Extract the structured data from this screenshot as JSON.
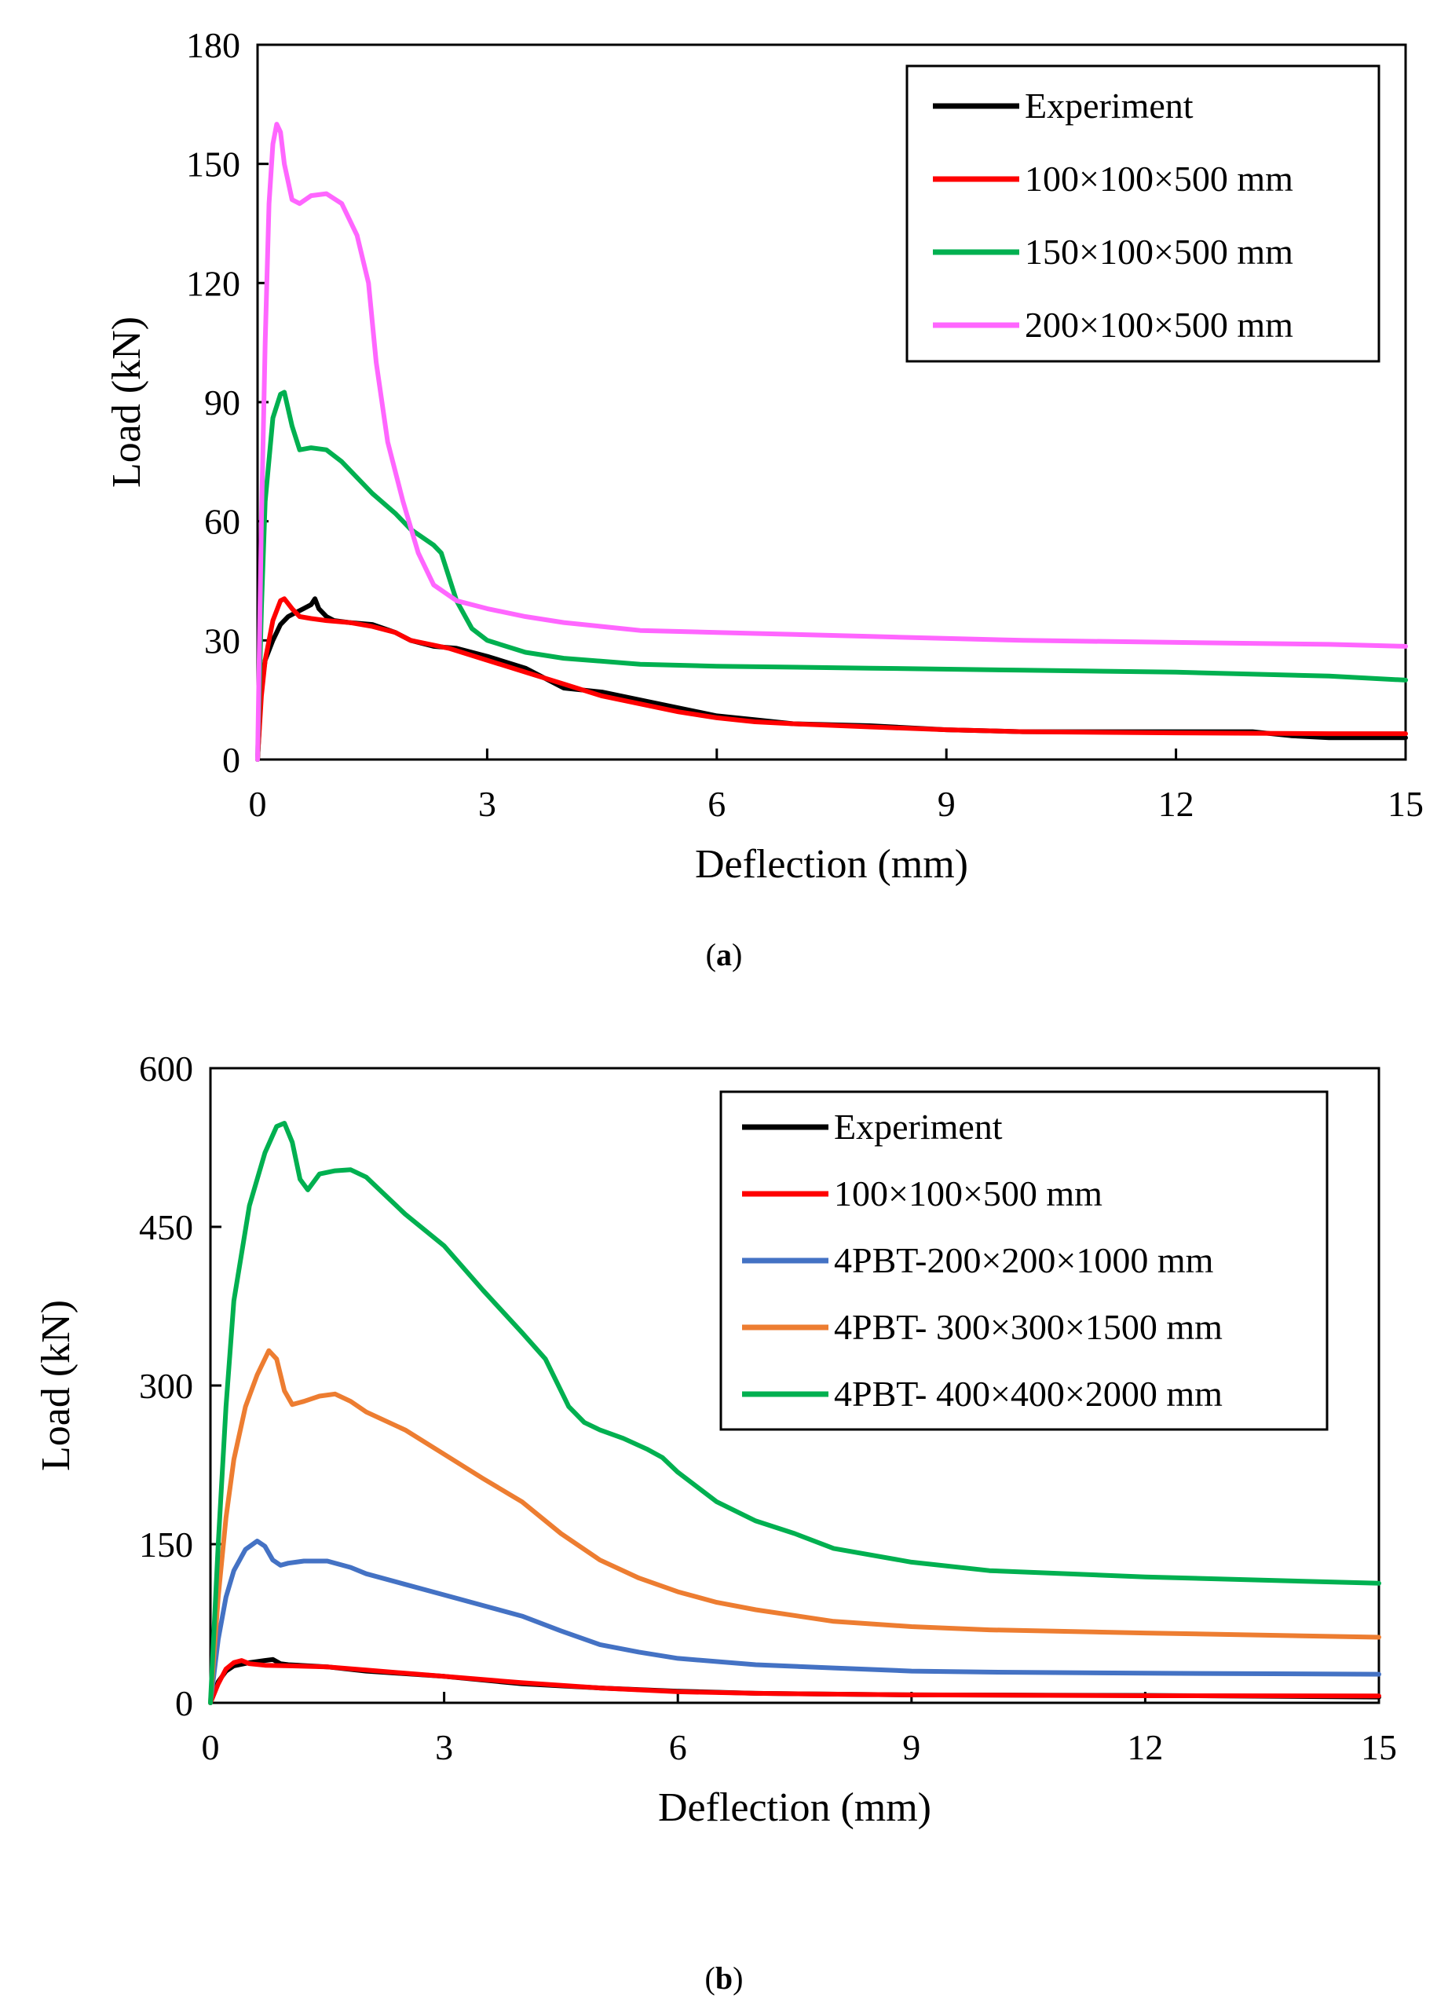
{
  "charts": [
    {
      "panel_label": "a",
      "type": "line",
      "xlabel": "Deflection (mm)",
      "ylabel": "Load (kN)",
      "xlim": [
        0,
        15
      ],
      "ylim": [
        0,
        180
      ],
      "xticks": [
        0,
        3,
        6,
        9,
        12,
        15
      ],
      "yticks": [
        0,
        30,
        60,
        90,
        120,
        150,
        180
      ],
      "grid": false,
      "legend_position": "top-right",
      "series": [
        {
          "name": "Experiment",
          "color": "#000000",
          "points": [
            [
              0,
              0
            ],
            [
              0.05,
              18
            ],
            [
              0.1,
              25
            ],
            [
              0.2,
              30
            ],
            [
              0.3,
              34
            ],
            [
              0.4,
              36
            ],
            [
              0.5,
              37
            ],
            [
              0.6,
              38
            ],
            [
              0.7,
              39
            ],
            [
              0.75,
              40.5
            ],
            [
              0.8,
              38
            ],
            [
              0.9,
              36
            ],
            [
              1.0,
              35
            ],
            [
              1.2,
              34.5
            ],
            [
              1.5,
              34
            ],
            [
              1.8,
              32
            ],
            [
              2.0,
              30
            ],
            [
              2.3,
              28.5
            ],
            [
              2.6,
              28
            ],
            [
              3.0,
              26
            ],
            [
              3.5,
              23
            ],
            [
              4.0,
              18
            ],
            [
              4.5,
              17
            ],
            [
              5.0,
              15
            ],
            [
              5.5,
              13
            ],
            [
              6.0,
              11
            ],
            [
              6.5,
              10
            ],
            [
              7.0,
              9
            ],
            [
              8.0,
              8.5
            ],
            [
              9.0,
              7.5
            ],
            [
              10.0,
              7
            ],
            [
              11.0,
              7
            ],
            [
              12.0,
              7
            ],
            [
              13.0,
              7
            ],
            [
              13.5,
              6
            ],
            [
              14.0,
              5.5
            ],
            [
              15.0,
              5.5
            ]
          ]
        },
        {
          "name": "100×100×500 mm",
          "color": "#ff0000",
          "points": [
            [
              0,
              0
            ],
            [
              0.05,
              16
            ],
            [
              0.1,
              25
            ],
            [
              0.2,
              35
            ],
            [
              0.3,
              40
            ],
            [
              0.35,
              40.5
            ],
            [
              0.45,
              38
            ],
            [
              0.55,
              36
            ],
            [
              0.7,
              35.5
            ],
            [
              0.9,
              35
            ],
            [
              1.2,
              34.5
            ],
            [
              1.5,
              33.5
            ],
            [
              1.8,
              32
            ],
            [
              2.0,
              30
            ],
            [
              2.5,
              28
            ],
            [
              3.0,
              25
            ],
            [
              3.5,
              22
            ],
            [
              4.0,
              19
            ],
            [
              4.5,
              16
            ],
            [
              5.0,
              14
            ],
            [
              5.5,
              12
            ],
            [
              6.0,
              10.5
            ],
            [
              6.5,
              9.5
            ],
            [
              7.0,
              9
            ],
            [
              8.0,
              8.2
            ],
            [
              9.0,
              7.5
            ],
            [
              10.0,
              7
            ],
            [
              12.0,
              6.7
            ],
            [
              14.0,
              6.5
            ],
            [
              15.0,
              6.5
            ]
          ]
        },
        {
          "name": "150×100×500 mm",
          "color": "#00b050",
          "points": [
            [
              0,
              0
            ],
            [
              0.05,
              38
            ],
            [
              0.1,
              65
            ],
            [
              0.2,
              86
            ],
            [
              0.3,
              92
            ],
            [
              0.35,
              92.5
            ],
            [
              0.45,
              84
            ],
            [
              0.55,
              78
            ],
            [
              0.7,
              78.5
            ],
            [
              0.9,
              78
            ],
            [
              1.1,
              75
            ],
            [
              1.5,
              67
            ],
            [
              1.8,
              62
            ],
            [
              2.0,
              58
            ],
            [
              2.3,
              54
            ],
            [
              2.4,
              52
            ],
            [
              2.6,
              40
            ],
            [
              2.8,
              33
            ],
            [
              3.0,
              30
            ],
            [
              3.5,
              27
            ],
            [
              4.0,
              25.5
            ],
            [
              5.0,
              24
            ],
            [
              6.0,
              23.5
            ],
            [
              8.0,
              23
            ],
            [
              10.0,
              22.5
            ],
            [
              12.0,
              22
            ],
            [
              14.0,
              21
            ],
            [
              15.0,
              20
            ]
          ]
        },
        {
          "name": "200×100×500 mm",
          "color": "#ff66ff",
          "points": [
            [
              0,
              0
            ],
            [
              0.05,
              60
            ],
            [
              0.1,
              105
            ],
            [
              0.15,
              140
            ],
            [
              0.2,
              155
            ],
            [
              0.25,
              160
            ],
            [
              0.3,
              158
            ],
            [
              0.35,
              150
            ],
            [
              0.45,
              141
            ],
            [
              0.55,
              140
            ],
            [
              0.7,
              142
            ],
            [
              0.9,
              142.5
            ],
            [
              1.1,
              140
            ],
            [
              1.3,
              132
            ],
            [
              1.45,
              120
            ],
            [
              1.55,
              100
            ],
            [
              1.7,
              80
            ],
            [
              1.9,
              65
            ],
            [
              2.1,
              52
            ],
            [
              2.3,
              44
            ],
            [
              2.6,
              40
            ],
            [
              3.0,
              38
            ],
            [
              3.5,
              36
            ],
            [
              4.0,
              34.5
            ],
            [
              5.0,
              32.5
            ],
            [
              6.0,
              32
            ],
            [
              8.0,
              31
            ],
            [
              10.0,
              30
            ],
            [
              12.0,
              29.5
            ],
            [
              14.0,
              29
            ],
            [
              15.0,
              28.5
            ]
          ]
        }
      ]
    },
    {
      "panel_label": "b",
      "type": "line",
      "xlabel": "Deflection (mm)",
      "ylabel": "Load (kN)",
      "xlim": [
        0,
        15
      ],
      "ylim": [
        0,
        600
      ],
      "xticks": [
        0,
        3,
        6,
        9,
        12,
        15
      ],
      "yticks": [
        0,
        150,
        300,
        450,
        600
      ],
      "grid": false,
      "legend_position": "top-right",
      "series": [
        {
          "name": "Experiment",
          "color": "#000000",
          "points": [
            [
              0,
              0
            ],
            [
              0.1,
              20
            ],
            [
              0.2,
              30
            ],
            [
              0.3,
              35
            ],
            [
              0.5,
              38
            ],
            [
              0.7,
              40
            ],
            [
              0.8,
              41
            ],
            [
              0.9,
              37
            ],
            [
              1.0,
              36
            ],
            [
              1.5,
              34
            ],
            [
              2.0,
              30
            ],
            [
              3.0,
              25
            ],
            [
              4.0,
              18
            ],
            [
              5.0,
              14
            ],
            [
              6.0,
              11
            ],
            [
              7.0,
              9
            ],
            [
              9.0,
              7.5
            ],
            [
              12.0,
              7
            ],
            [
              15.0,
              5.5
            ]
          ]
        },
        {
          "name": "100×100×500 mm",
          "color": "#ff0000",
          "points": [
            [
              0,
              0
            ],
            [
              0.1,
              18
            ],
            [
              0.2,
              32
            ],
            [
              0.3,
              38
            ],
            [
              0.4,
              40
            ],
            [
              0.5,
              37
            ],
            [
              0.7,
              35.5
            ],
            [
              1.0,
              35
            ],
            [
              1.5,
              34
            ],
            [
              2.0,
              31
            ],
            [
              3.0,
              25
            ],
            [
              4.0,
              19
            ],
            [
              5.0,
              14
            ],
            [
              6.0,
              10.5
            ],
            [
              7.0,
              9
            ],
            [
              9.0,
              7.5
            ],
            [
              12.0,
              6.7
            ],
            [
              15.0,
              6.5
            ]
          ]
        },
        {
          "name": "4PBT-200×200×1000 mm",
          "color": "#4472c4",
          "points": [
            [
              0,
              0
            ],
            [
              0.1,
              60
            ],
            [
              0.2,
              100
            ],
            [
              0.3,
              125
            ],
            [
              0.45,
              145
            ],
            [
              0.6,
              153
            ],
            [
              0.7,
              148
            ],
            [
              0.8,
              135
            ],
            [
              0.9,
              130
            ],
            [
              1.0,
              132
            ],
            [
              1.2,
              134
            ],
            [
              1.5,
              134
            ],
            [
              1.8,
              128
            ],
            [
              2.0,
              122
            ],
            [
              2.5,
              112
            ],
            [
              3.0,
              102
            ],
            [
              3.5,
              92
            ],
            [
              4.0,
              82
            ],
            [
              4.5,
              68
            ],
            [
              5.0,
              55
            ],
            [
              5.5,
              48
            ],
            [
              6.0,
              42
            ],
            [
              7.0,
              36
            ],
            [
              8.0,
              33
            ],
            [
              9.0,
              30
            ],
            [
              10.0,
              29
            ],
            [
              12.0,
              28
            ],
            [
              15.0,
              27
            ]
          ]
        },
        {
          "name": "4PBT- 300×300×1500 mm",
          "color": "#ed7d31",
          "points": [
            [
              0,
              0
            ],
            [
              0.1,
              100
            ],
            [
              0.2,
              175
            ],
            [
              0.3,
              230
            ],
            [
              0.45,
              280
            ],
            [
              0.6,
              310
            ],
            [
              0.75,
              333
            ],
            [
              0.85,
              325
            ],
            [
              0.95,
              295
            ],
            [
              1.05,
              282
            ],
            [
              1.2,
              285
            ],
            [
              1.4,
              290
            ],
            [
              1.6,
              292
            ],
            [
              1.8,
              285
            ],
            [
              2.0,
              275
            ],
            [
              2.5,
              258
            ],
            [
              3.0,
              235
            ],
            [
              3.5,
              212
            ],
            [
              4.0,
              190
            ],
            [
              4.5,
              160
            ],
            [
              5.0,
              135
            ],
            [
              5.5,
              118
            ],
            [
              6.0,
              105
            ],
            [
              6.5,
              95
            ],
            [
              7.0,
              88
            ],
            [
              8.0,
              77
            ],
            [
              9.0,
              72
            ],
            [
              10.0,
              69
            ],
            [
              12.0,
              66
            ],
            [
              15.0,
              62
            ]
          ]
        },
        {
          "name": "4PBT- 400×400×2000 mm",
          "color": "#00b050",
          "points": [
            [
              0,
              0
            ],
            [
              0.1,
              150
            ],
            [
              0.2,
              280
            ],
            [
              0.3,
              380
            ],
            [
              0.5,
              470
            ],
            [
              0.7,
              520
            ],
            [
              0.85,
              545
            ],
            [
              0.95,
              548
            ],
            [
              1.05,
              530
            ],
            [
              1.15,
              495
            ],
            [
              1.25,
              485
            ],
            [
              1.4,
              500
            ],
            [
              1.6,
              503
            ],
            [
              1.8,
              504
            ],
            [
              2.0,
              497
            ],
            [
              2.5,
              462
            ],
            [
              3.0,
              432
            ],
            [
              3.5,
              390
            ],
            [
              4.0,
              350
            ],
            [
              4.3,
              325
            ],
            [
              4.6,
              280
            ],
            [
              4.8,
              265
            ],
            [
              5.0,
              258
            ],
            [
              5.3,
              250
            ],
            [
              5.6,
              240
            ],
            [
              5.8,
              232
            ],
            [
              6.0,
              218
            ],
            [
              6.5,
              190
            ],
            [
              7.0,
              172
            ],
            [
              7.5,
              160
            ],
            [
              8.0,
              146
            ],
            [
              9.0,
              133
            ],
            [
              10.0,
              125
            ],
            [
              12.0,
              119
            ],
            [
              15.0,
              113
            ]
          ]
        }
      ]
    }
  ]
}
